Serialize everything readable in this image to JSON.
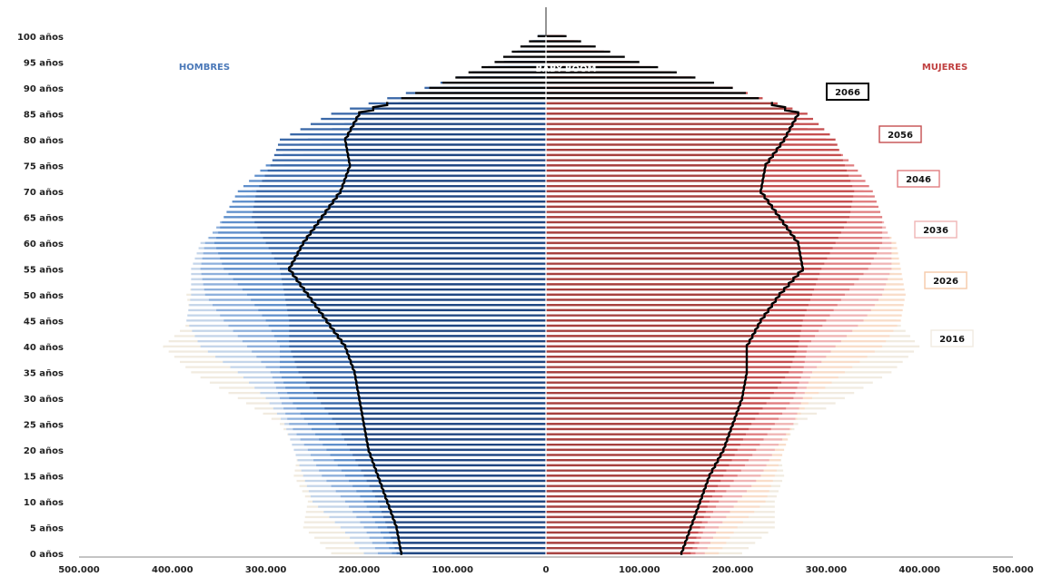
{
  "chart_data": {
    "type": "bar",
    "orientation": "horizontal",
    "chart_kind": "population-pyramid",
    "title": "",
    "xlabel": "",
    "ylabel": "",
    "xlim": [
      -500000,
      500000
    ],
    "x_ticks": [
      {
        "value": -500000,
        "label": "500.000"
      },
      {
        "value": -400000,
        "label": "400.000"
      },
      {
        "value": -300000,
        "label": "300.000"
      },
      {
        "value": -200000,
        "label": "200.000"
      },
      {
        "value": -100000,
        "label": "100.000"
      },
      {
        "value": 0,
        "label": "0"
      },
      {
        "value": 100000,
        "label": "100.000"
      },
      {
        "value": 200000,
        "label": "200.000"
      },
      {
        "value": 300000,
        "label": "300.000"
      },
      {
        "value": 400000,
        "label": "400.000"
      },
      {
        "value": 500000,
        "label": "500.000"
      }
    ],
    "y_ticks": [
      {
        "age": 0,
        "label": "0 años"
      },
      {
        "age": 5,
        "label": "5 años"
      },
      {
        "age": 10,
        "label": "10 años"
      },
      {
        "age": 15,
        "label": "15 años"
      },
      {
        "age": 20,
        "label": "20 años"
      },
      {
        "age": 25,
        "label": "25 años"
      },
      {
        "age": 30,
        "label": "30 años"
      },
      {
        "age": 35,
        "label": "35 años"
      },
      {
        "age": 40,
        "label": "40 años"
      },
      {
        "age": 45,
        "label": "45 años"
      },
      {
        "age": 50,
        "label": "50 años"
      },
      {
        "age": 55,
        "label": "55 años"
      },
      {
        "age": 60,
        "label": "60 años"
      },
      {
        "age": 65,
        "label": "65 años"
      },
      {
        "age": 70,
        "label": "70 años"
      },
      {
        "age": 75,
        "label": "75 años"
      },
      {
        "age": 80,
        "label": "80 años"
      },
      {
        "age": 85,
        "label": "85 años"
      },
      {
        "age": 90,
        "label": "90 años"
      },
      {
        "age": 95,
        "label": "95 años"
      },
      {
        "age": 100,
        "label": "100 años"
      }
    ],
    "ages": [
      0,
      5,
      10,
      15,
      20,
      25,
      30,
      35,
      40,
      45,
      50,
      55,
      60,
      65,
      70,
      75,
      80,
      85,
      90,
      95,
      100
    ],
    "side_labels": {
      "left": "HOMBRES",
      "right": "MUJERES"
    },
    "annotation": "BABY-BOOM",
    "series": [
      {
        "name": "2016",
        "color": "#f1ebe0",
        "men": [
          230000,
          260000,
          255000,
          270000,
          265000,
          285000,
          330000,
          380000,
          410000,
          380000,
          385000,
          365000,
          340000,
          300000,
          270000,
          220000,
          160000,
          100000,
          55000,
          20000,
          5000
        ],
        "women": [
          210000,
          245000,
          245000,
          255000,
          250000,
          270000,
          320000,
          370000,
          400000,
          375000,
          385000,
          370000,
          350000,
          320000,
          300000,
          260000,
          220000,
          160000,
          100000,
          40000,
          8000
        ]
      },
      {
        "name": "2026",
        "color": "#c4d5ea",
        "men": [
          195000,
          220000,
          250000,
          260000,
          270000,
          280000,
          300000,
          330000,
          370000,
          385000,
          380000,
          380000,
          370000,
          330000,
          300000,
          260000,
          210000,
          150000,
          85000,
          30000,
          6000
        ],
        "women": [
          185000,
          205000,
          235000,
          245000,
          255000,
          265000,
          285000,
          320000,
          360000,
          380000,
          385000,
          380000,
          375000,
          350000,
          330000,
          300000,
          260000,
          200000,
          130000,
          55000,
          10000
        ],
        "colors": {
          "men": "#c4d5ea",
          "women": "#f9ddc9"
        }
      },
      {
        "name": "2036",
        "color": "#8eb0dc",
        "men": [
          180000,
          195000,
          215000,
          240000,
          255000,
          275000,
          285000,
          295000,
          320000,
          345000,
          365000,
          370000,
          365000,
          345000,
          315000,
          280000,
          230000,
          170000,
          100000,
          38000,
          7000
        ],
        "women": [
          170000,
          185000,
          205000,
          230000,
          245000,
          265000,
          275000,
          285000,
          310000,
          340000,
          360000,
          370000,
          370000,
          360000,
          340000,
          315000,
          285000,
          230000,
          160000,
          70000,
          14000
        ],
        "colors": {
          "men": "#8eb0dc",
          "women": "#f0b5b5"
        }
      },
      {
        "name": "2046",
        "color": "#5f8fcb",
        "men": [
          165000,
          180000,
          195000,
          215000,
          235000,
          255000,
          275000,
          285000,
          285000,
          300000,
          320000,
          345000,
          355000,
          345000,
          330000,
          300000,
          255000,
          190000,
          110000,
          40000,
          8000
        ],
        "women": [
          160000,
          170000,
          185000,
          205000,
          225000,
          245000,
          265000,
          275000,
          280000,
          300000,
          320000,
          345000,
          360000,
          360000,
          350000,
          330000,
          300000,
          250000,
          175000,
          80000,
          18000
        ],
        "colors": {
          "men": "#5f8fcb",
          "women": "#e07e80"
        }
      },
      {
        "name": "2056",
        "color": "#3a68a8",
        "men": [
          160000,
          170000,
          180000,
          195000,
          210000,
          225000,
          245000,
          265000,
          275000,
          275000,
          280000,
          285000,
          300000,
          315000,
          310000,
          295000,
          285000,
          230000,
          130000,
          45000,
          9000
        ],
        "women": [
          155000,
          165000,
          175000,
          190000,
          205000,
          220000,
          240000,
          260000,
          270000,
          275000,
          285000,
          295000,
          310000,
          325000,
          330000,
          320000,
          310000,
          280000,
          200000,
          90000,
          20000
        ],
        "colors": {
          "men": "#3a68a8",
          "women": "#c54e4f"
        }
      },
      {
        "name": "2066",
        "color": "#000000",
        "men": [
          155000,
          160000,
          170000,
          180000,
          190000,
          195000,
          200000,
          205000,
          215000,
          235000,
          255000,
          275000,
          260000,
          240000,
          220000,
          210000,
          215000,
          200000,
          125000,
          55000,
          9000
        ],
        "women": [
          145000,
          155000,
          165000,
          175000,
          190000,
          200000,
          210000,
          215000,
          215000,
          230000,
          250000,
          275000,
          270000,
          250000,
          230000,
          235000,
          255000,
          270000,
          200000,
          100000,
          22000
        ],
        "colors": {
          "men": "#1f4580",
          "women": "#a5403e"
        },
        "outline": true
      }
    ],
    "baby_boom_region": {
      "age_from": 88,
      "age_to": 100,
      "color": "#000000"
    },
    "legend_placement": "right, stacked by year",
    "grid": false
  }
}
